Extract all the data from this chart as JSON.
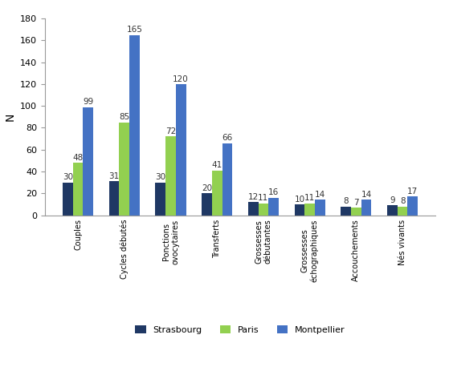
{
  "categories": [
    "Couples",
    "Cycles débutés",
    "Ponctions\novocytaires",
    "Transferts",
    "Grossesses\ndébutantes",
    "Grossesses\néchographiques",
    "Accouchements",
    "Nés vivants"
  ],
  "strasbourg": [
    30,
    31,
    30,
    20,
    12,
    10,
    8,
    9
  ],
  "paris": [
    48,
    85,
    72,
    41,
    11,
    11,
    7,
    8
  ],
  "montpellier": [
    99,
    165,
    120,
    66,
    16,
    14,
    14,
    17
  ],
  "color_strasbourg": "#1F3864",
  "color_paris": "#92D050",
  "color_montpellier": "#4472C4",
  "ylabel": "N",
  "ylim": [
    0,
    180
  ],
  "yticks": [
    0,
    20,
    40,
    60,
    80,
    100,
    120,
    140,
    160,
    180
  ],
  "legend_labels": [
    "Strasbourg",
    "Paris",
    "Montpellier"
  ],
  "bar_width": 0.22,
  "label_fontsize": 7.5,
  "tick_fontsize": 8,
  "ylabel_fontsize": 10
}
